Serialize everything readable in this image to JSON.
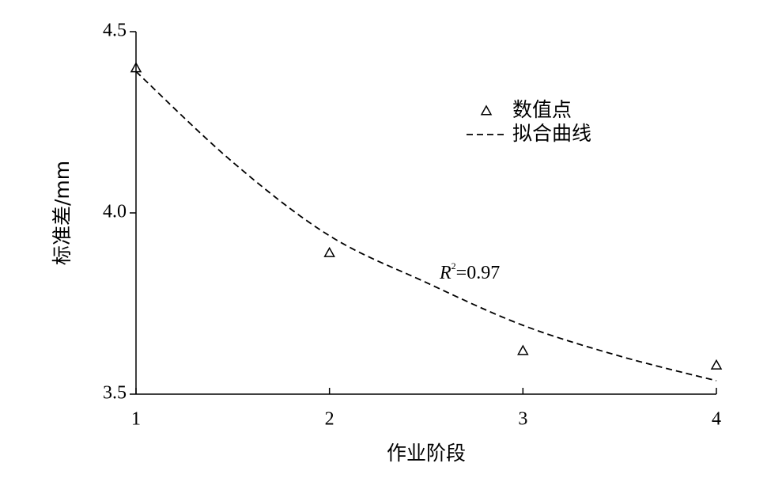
{
  "chart_data": {
    "type": "scatter",
    "xlabel": "作业阶段",
    "ylabel": "标准差/mm",
    "xlim": [
      1,
      4
    ],
    "ylim": [
      3.5,
      4.5
    ],
    "xticks": [
      1,
      2,
      3,
      4
    ],
    "yticks": [
      3.5,
      {
        "value": 4,
        "label": "4.0"
      },
      4.5
    ],
    "legend": "upper right",
    "series": [
      {
        "name": "数值点",
        "type": "scatter",
        "marker": "triangle",
        "color": "#000000",
        "x": [
          1,
          2,
          3,
          4
        ],
        "values": [
          4.4,
          3.89,
          3.62,
          3.58
        ]
      },
      {
        "name": "拟合曲线",
        "type": "line",
        "linestyle": "dashed",
        "color": "#000000",
        "x": [
          1,
          1.5,
          2,
          2.5,
          3,
          3.5,
          4
        ],
        "values": [
          4.39,
          4.14,
          3.937,
          3.808,
          3.69,
          3.605,
          3.537
        ]
      }
    ],
    "annotation": {
      "text": "R",
      "sup": "2",
      "suffix": "=0.97"
    }
  }
}
